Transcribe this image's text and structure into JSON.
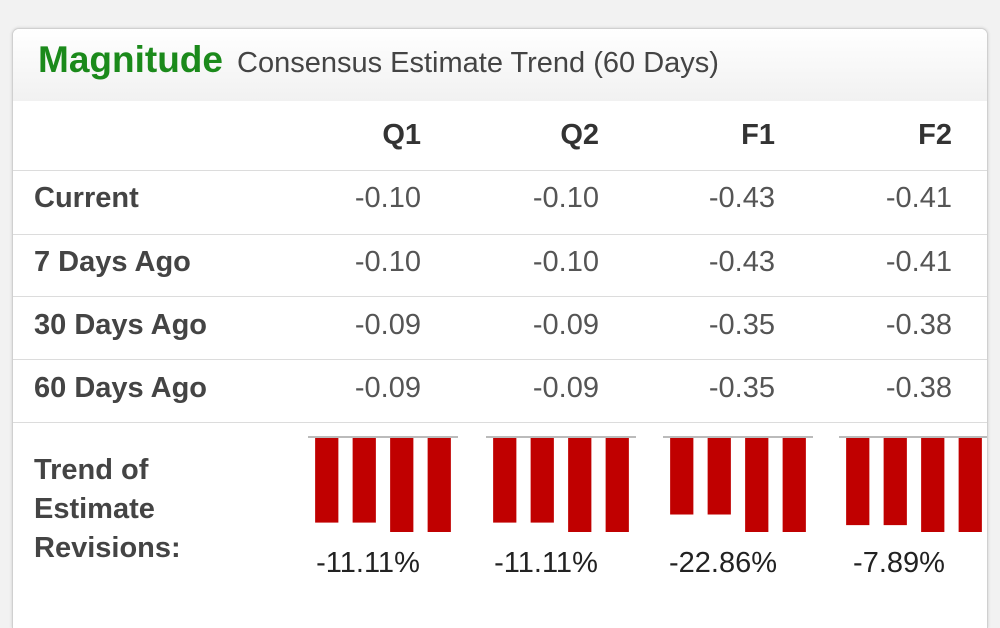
{
  "header": {
    "title": "Magnitude",
    "subtitle": "Consensus Estimate Trend (60 Days)"
  },
  "columns": [
    "Q1",
    "Q2",
    "F1",
    "F2"
  ],
  "rows": [
    {
      "label": "Current",
      "values": [
        "-0.10",
        "-0.10",
        "-0.43",
        "-0.41"
      ]
    },
    {
      "label": "7 Days Ago",
      "values": [
        "-0.10",
        "-0.10",
        "-0.43",
        "-0.41"
      ]
    },
    {
      "label": "30 Days Ago",
      "values": [
        "-0.09",
        "-0.09",
        "-0.35",
        "-0.38"
      ]
    },
    {
      "label": "60 Days Ago",
      "values": [
        "-0.09",
        "-0.09",
        "-0.35",
        "-0.38"
      ]
    }
  ],
  "trend": {
    "label": "Trend of Estimate Revisions:",
    "bar_color": "#c00000",
    "percentages": [
      "-11.11%",
      "-11.11%",
      "-22.86%",
      "-7.89%"
    ]
  },
  "chart_data": {
    "type": "bar",
    "categories": [
      "60 Days Ago",
      "30 Days Ago",
      "7 Days Ago",
      "Current"
    ],
    "groups": [
      {
        "name": "Q1",
        "values": [
          -0.09,
          -0.09,
          -0.1,
          -0.1
        ]
      },
      {
        "name": "Q2",
        "values": [
          -0.09,
          -0.09,
          -0.1,
          -0.1
        ]
      },
      {
        "name": "F1",
        "values": [
          -0.35,
          -0.35,
          -0.43,
          -0.43
        ]
      },
      {
        "name": "F2",
        "values": [
          -0.38,
          -0.38,
          -0.41,
          -0.41
        ]
      }
    ]
  }
}
